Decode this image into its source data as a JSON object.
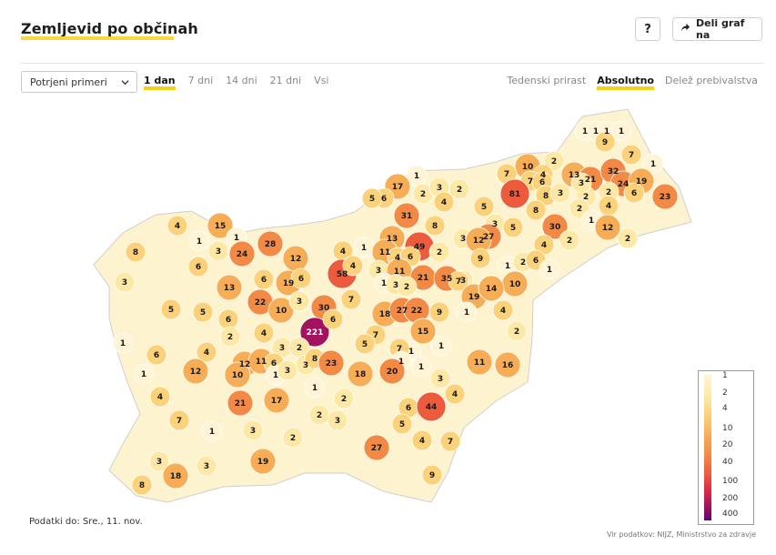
{
  "header": {
    "title": "Zemljevid po občinah",
    "help_label": "?",
    "share_label": "Deli graf na"
  },
  "controls": {
    "metric_select": "Potrjeni primeri",
    "periods": [
      "1 dan",
      "7 dni",
      "14 dni",
      "21 dni",
      "Vsi"
    ],
    "active_period": "1 dan",
    "modes": [
      "Tedenski prirast",
      "Absolutno",
      "Delež prebivalstva"
    ],
    "active_mode": "Absolutno"
  },
  "map": {
    "country": "Slovenija",
    "labels": [
      {
        "v": 1
      },
      {
        "v": 1
      },
      {
        "v": 1
      },
      {
        "v": 1
      },
      {
        "v": 9
      },
      {
        "v": 7
      },
      {
        "v": 1
      },
      {
        "v": 10
      },
      {
        "v": 2
      },
      {
        "v": 4
      },
      {
        "v": 7
      },
      {
        "v": 7
      },
      {
        "v": 6
      },
      {
        "v": 13
      },
      {
        "v": 21
      },
      {
        "v": 32
      },
      {
        "v": 24
      },
      {
        "v": 19
      },
      {
        "v": 23
      },
      {
        "v": 1
      },
      {
        "v": 81
      },
      {
        "v": 8
      },
      {
        "v": 3
      },
      {
        "v": 2
      },
      {
        "v": 2
      },
      {
        "v": 3
      },
      {
        "v": 2
      },
      {
        "v": 6
      },
      {
        "v": 4
      },
      {
        "v": 17
      },
      {
        "v": 2
      },
      {
        "v": 3
      },
      {
        "v": 2
      },
      {
        "v": 4
      },
      {
        "v": 6
      },
      {
        "v": 5
      },
      {
        "v": 5
      },
      {
        "v": 8
      },
      {
        "v": 31
      },
      {
        "v": 8
      },
      {
        "v": 3
      },
      {
        "v": 27
      },
      {
        "v": 5
      },
      {
        "v": 30
      },
      {
        "v": 1
      },
      {
        "v": 12
      },
      {
        "v": 2
      },
      {
        "v": 4
      },
      {
        "v": 15
      },
      {
        "v": 1
      },
      {
        "v": 1
      },
      {
        "v": 28
      },
      {
        "v": 13
      },
      {
        "v": 49
      },
      {
        "v": 2
      },
      {
        "v": 3
      },
      {
        "v": 12
      },
      {
        "v": 4
      },
      {
        "v": 2
      },
      {
        "v": 8
      },
      {
        "v": 3
      },
      {
        "v": 24
      },
      {
        "v": 12
      },
      {
        "v": 4
      },
      {
        "v": 1
      },
      {
        "v": 11
      },
      {
        "v": 4
      },
      {
        "v": 6
      },
      {
        "v": 9
      },
      {
        "v": 1
      },
      {
        "v": 2
      },
      {
        "v": 6
      },
      {
        "v": 1
      },
      {
        "v": 6
      },
      {
        "v": 58
      },
      {
        "v": 4
      },
      {
        "v": 3
      },
      {
        "v": 11
      },
      {
        "v": 21
      },
      {
        "v": 35
      },
      {
        "v": 3
      },
      {
        "v": 10
      },
      {
        "v": 3
      },
      {
        "v": 13
      },
      {
        "v": 6
      },
      {
        "v": 19
      },
      {
        "v": 6
      },
      {
        "v": 1
      },
      {
        "v": 3
      },
      {
        "v": 2
      },
      {
        "v": 7
      },
      {
        "v": 19
      },
      {
        "v": 14
      },
      {
        "v": 5
      },
      {
        "v": 5
      },
      {
        "v": 6
      },
      {
        "v": 22
      },
      {
        "v": 10
      },
      {
        "v": 3
      },
      {
        "v": 30
      },
      {
        "v": 7
      },
      {
        "v": 18
      },
      {
        "v": 27
      },
      {
        "v": 22
      },
      {
        "v": 9
      },
      {
        "v": 1
      },
      {
        "v": 4
      },
      {
        "v": 1
      },
      {
        "v": 6
      },
      {
        "v": 4
      },
      {
        "v": 2
      },
      {
        "v": 221
      },
      {
        "v": 6
      },
      {
        "v": 4
      },
      {
        "v": 7
      },
      {
        "v": 5
      },
      {
        "v": 15
      },
      {
        "v": 1
      },
      {
        "v": 2
      },
      {
        "v": 7
      },
      {
        "v": 1
      },
      {
        "v": 3
      },
      {
        "v": 2
      },
      {
        "v": 1
      },
      {
        "v": 12
      },
      {
        "v": 12
      },
      {
        "v": 11
      },
      {
        "v": 6
      },
      {
        "v": 3
      },
      {
        "v": 8
      },
      {
        "v": 23
      },
      {
        "v": 18
      },
      {
        "v": 20
      },
      {
        "v": 1
      },
      {
        "v": 11
      },
      {
        "v": 16
      },
      {
        "v": 1
      },
      {
        "v": 4
      },
      {
        "v": 10
      },
      {
        "v": 1
      },
      {
        "v": 3
      },
      {
        "v": 2
      },
      {
        "v": 1
      },
      {
        "v": 3
      },
      {
        "v": 4
      },
      {
        "v": 21
      },
      {
        "v": 17
      },
      {
        "v": 2
      },
      {
        "v": 3
      },
      {
        "v": 6
      },
      {
        "v": 44
      },
      {
        "v": 7
      },
      {
        "v": 1
      },
      {
        "v": 3
      },
      {
        "v": 2
      },
      {
        "v": 5
      },
      {
        "v": 4
      },
      {
        "v": 7
      },
      {
        "v": 3
      },
      {
        "v": 18
      },
      {
        "v": 3
      },
      {
        "v": 19
      },
      {
        "v": 27
      },
      {
        "v": 8
      },
      {
        "v": 9
      }
    ]
  },
  "legend": {
    "ticks": [
      "1",
      "2",
      "4",
      "10",
      "20",
      "40",
      "100",
      "200",
      "400"
    ],
    "colors": [
      "#fff5d6",
      "#fde8a6",
      "#fbd179",
      "#f7ad55",
      "#f28a45",
      "#ec5c3c",
      "#d8294a",
      "#a3125f",
      "#5a0870"
    ]
  },
  "footer": {
    "date_label": "Podatki do: Sre., 11. nov.",
    "source_label": "Vir podatkov: NIJZ, Ministrstvo za zdravje"
  }
}
